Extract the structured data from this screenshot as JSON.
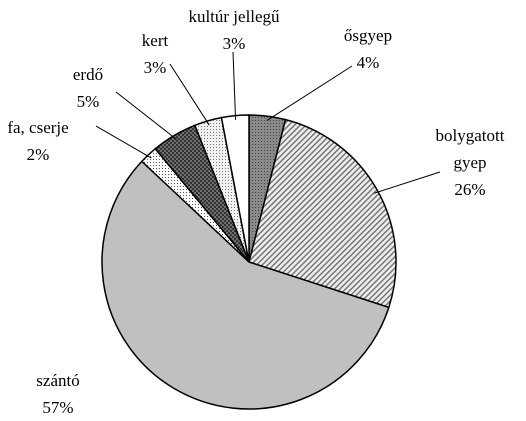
{
  "chart_data": {
    "type": "pie",
    "categories": [
      "ősgyep",
      "bolygatott gyep",
      "szántó",
      "fa, cserje",
      "erdő",
      "kert",
      "kultúr jellegű"
    ],
    "values": [
      4,
      26,
      57,
      2,
      5,
      3,
      3
    ],
    "value_labels": [
      "4%",
      "26%",
      "57%",
      "2%",
      "5%",
      "3%",
      "3%"
    ],
    "colors": [
      "#8a8a8a",
      "#d8d8d8",
      "#c0c0c0",
      "#ffffff",
      "#6e6e6e",
      "#e4e4e4",
      "#ffffff"
    ]
  }
}
